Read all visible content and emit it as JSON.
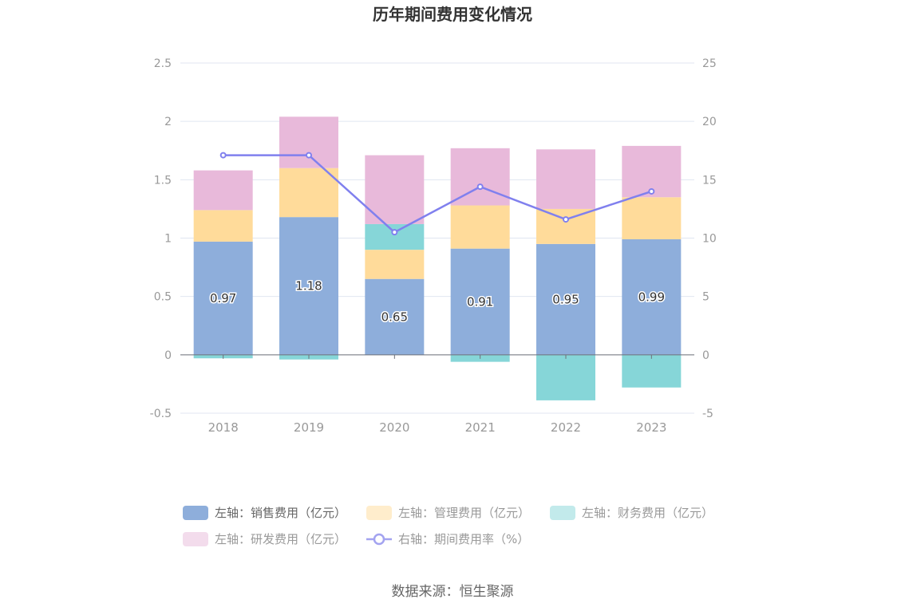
{
  "chart_data": {
    "type": "bar",
    "stacked": true,
    "title": "历年期间费用变化情况",
    "categories": [
      "2018",
      "2019",
      "2020",
      "2021",
      "2022",
      "2023"
    ],
    "series": [
      {
        "name": "左轴：销售费用（亿元）",
        "axis": "left",
        "color": "#8eaedb",
        "values": [
          0.97,
          1.18,
          0.65,
          0.91,
          0.95,
          0.99
        ],
        "labels": [
          "0.97",
          "1.18",
          "0.65",
          "0.91",
          "0.95",
          "0.99"
        ]
      },
      {
        "name": "左轴：管理费用（亿元）",
        "axis": "left",
        "color": "#ffdb9a",
        "values": [
          0.27,
          0.42,
          0.25,
          0.37,
          0.3,
          0.36
        ]
      },
      {
        "name": "左轴：财务费用（亿元）",
        "axis": "left",
        "color": "#86d6d8",
        "values": [
          -0.03,
          -0.04,
          0.22,
          -0.06,
          -0.39,
          -0.28
        ]
      },
      {
        "name": "左轴：研发费用（亿元）",
        "axis": "left",
        "color": "#e8b9da",
        "values": [
          0.34,
          0.44,
          0.59,
          0.49,
          0.51,
          0.44
        ]
      },
      {
        "name": "右轴：期间费用率（%）",
        "axis": "right",
        "type": "line",
        "color": "#8080ee",
        "values": [
          17.1,
          17.1,
          10.5,
          14.4,
          11.6,
          14.0
        ]
      }
    ],
    "left_axis": {
      "min": -0.5,
      "max": 2.5,
      "ticks": [
        "-0.5",
        "0",
        "0.5",
        "1",
        "1.5",
        "2",
        "2.5"
      ]
    },
    "right_axis": {
      "min": -5,
      "max": 25,
      "ticks": [
        "-5",
        "0",
        "5",
        "10",
        "15",
        "20",
        "25"
      ]
    },
    "grid": true,
    "legend_position": "bottom"
  },
  "source": "数据来源：恒生聚源"
}
